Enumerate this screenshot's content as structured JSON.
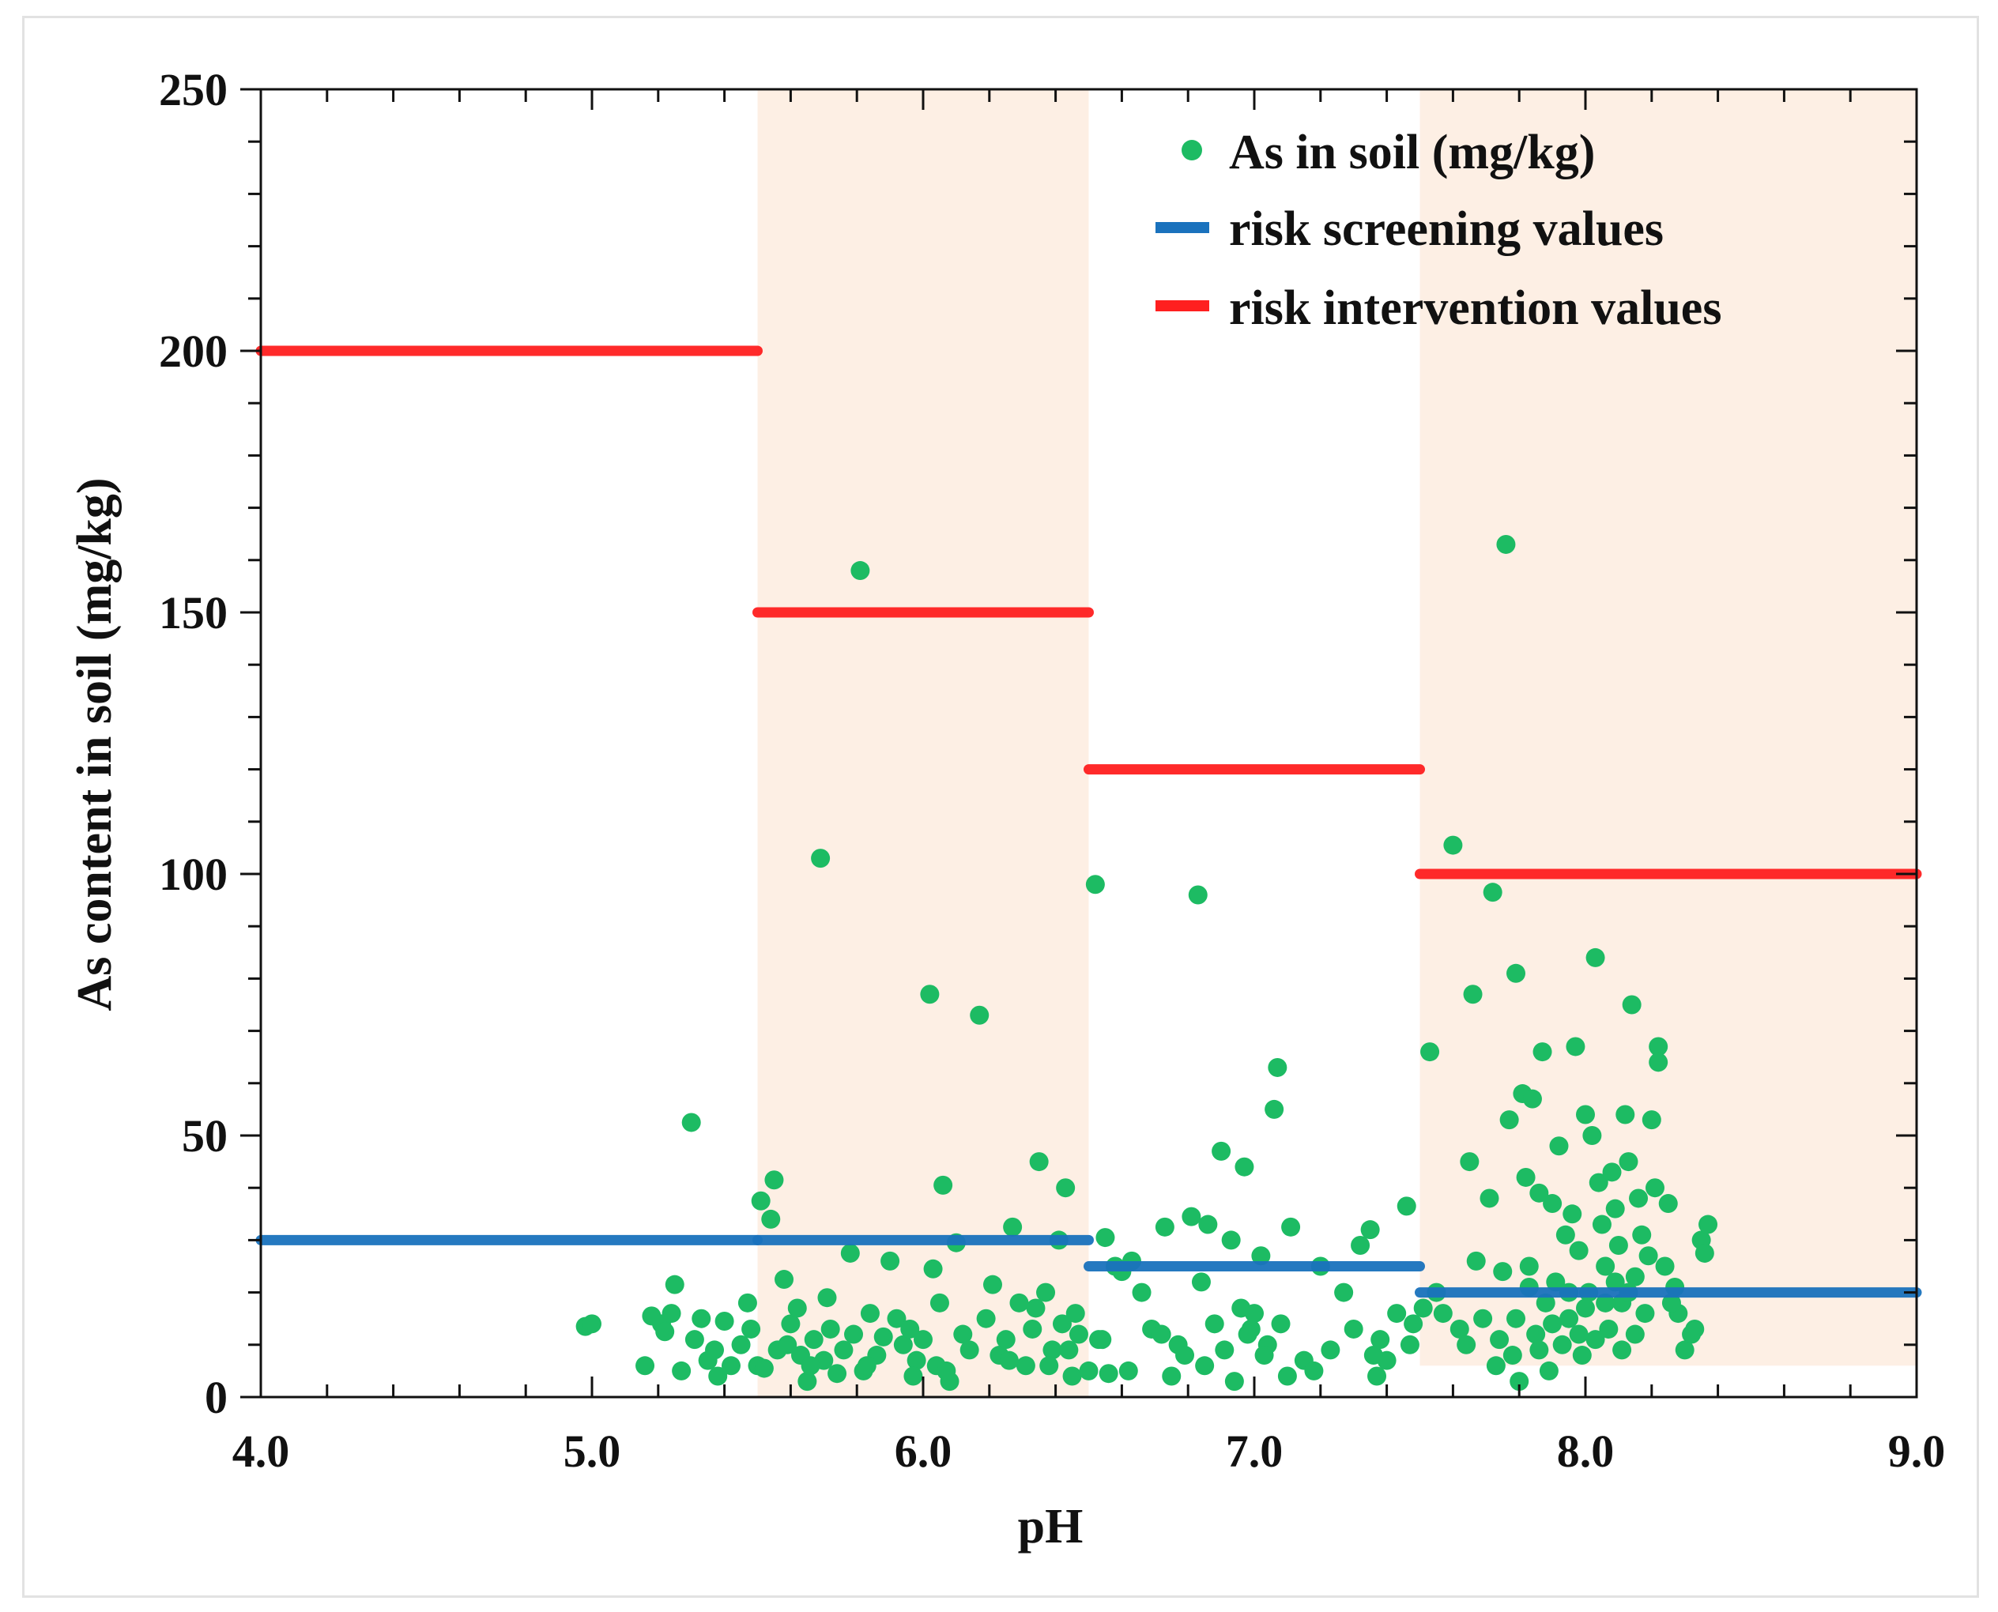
{
  "chart_data": {
    "type": "scatter",
    "title": "",
    "xlabel": "pH",
    "ylabel": "As content in soil (mg/kg)",
    "xlim": [
      4.0,
      9.0
    ],
    "ylim": [
      0,
      250
    ],
    "x_ticks": [
      "4.0",
      "5.0",
      "6.0",
      "7.0",
      "8.0",
      "9.0"
    ],
    "y_ticks": [
      "0",
      "50",
      "100",
      "150",
      "200",
      "250"
    ],
    "x_tick_values": [
      4.0,
      5.0,
      6.0,
      7.0,
      8.0,
      9.0
    ],
    "y_tick_values": [
      0,
      50,
      100,
      150,
      200,
      250
    ],
    "grid": false,
    "legend_position": "top-right",
    "legend": [
      {
        "key": "scatter",
        "label": "As in soil (mg/kg)"
      },
      {
        "key": "screening",
        "label": "risk screening values"
      },
      {
        "key": "intervention",
        "label": "risk intervention values"
      }
    ],
    "colors": {
      "scatter": "#1dbb63",
      "screening": "#1a72bd",
      "intervention": "#ff1f1f",
      "band": "#fdefe4",
      "axis": "#111111"
    },
    "shaded_bands": [
      {
        "x_range": [
          5.5,
          6.5
        ],
        "y_range": [
          0,
          250
        ]
      },
      {
        "x_range": [
          7.5,
          9.0
        ],
        "y_range": [
          6,
          250
        ]
      }
    ],
    "risk_screening_values": [
      {
        "x_range": [
          4.0,
          5.5
        ],
        "y": 30
      },
      {
        "x_range": [
          5.5,
          6.5
        ],
        "y": 30
      },
      {
        "x_range": [
          6.5,
          7.5
        ],
        "y": 25
      },
      {
        "x_range": [
          7.5,
          9.0
        ],
        "y": 20
      }
    ],
    "risk_intervention_values": [
      {
        "x_range": [
          4.0,
          5.5
        ],
        "y": 200
      },
      {
        "x_range": [
          5.5,
          6.5
        ],
        "y": 150
      },
      {
        "x_range": [
          6.5,
          7.5
        ],
        "y": 120
      },
      {
        "x_range": [
          7.5,
          9.0
        ],
        "y": 100
      }
    ],
    "scatter": {
      "name": "As in soil (mg/kg)",
      "points": [
        [
          4.98,
          13.5
        ],
        [
          5.0,
          14
        ],
        [
          5.16,
          6
        ],
        [
          5.18,
          15.5
        ],
        [
          5.21,
          14
        ],
        [
          5.22,
          12.5
        ],
        [
          5.24,
          16
        ],
        [
          5.25,
          21.5
        ],
        [
          5.27,
          5
        ],
        [
          5.3,
          52.5
        ],
        [
          5.31,
          11
        ],
        [
          5.33,
          15
        ],
        [
          5.35,
          7
        ],
        [
          5.37,
          9
        ],
        [
          5.38,
          4
        ],
        [
          5.4,
          14.5
        ],
        [
          5.42,
          6
        ],
        [
          5.45,
          10
        ],
        [
          5.47,
          18
        ],
        [
          5.48,
          13
        ],
        [
          5.5,
          6
        ],
        [
          5.51,
          37.5
        ],
        [
          5.52,
          5.5
        ],
        [
          5.54,
          34
        ],
        [
          5.55,
          41.5
        ],
        [
          5.56,
          9
        ],
        [
          5.58,
          22.5
        ],
        [
          5.6,
          14
        ],
        [
          5.62,
          17
        ],
        [
          5.63,
          8
        ],
        [
          5.65,
          3
        ],
        [
          5.67,
          11
        ],
        [
          5.69,
          103
        ],
        [
          5.7,
          7
        ],
        [
          5.72,
          13
        ],
        [
          5.74,
          4.5
        ],
        [
          5.76,
          9
        ],
        [
          5.78,
          27.5
        ],
        [
          5.79,
          12
        ],
        [
          5.81,
          158
        ],
        [
          5.82,
          5
        ],
        [
          5.84,
          16
        ],
        [
          5.86,
          8
        ],
        [
          5.88,
          11.5
        ],
        [
          5.9,
          26
        ],
        [
          5.92,
          15
        ],
        [
          5.94,
          10
        ],
        [
          5.96,
          13
        ],
        [
          5.98,
          7
        ],
        [
          6.0,
          11
        ],
        [
          6.02,
          77
        ],
        [
          6.03,
          24.5
        ],
        [
          6.04,
          6
        ],
        [
          6.05,
          18
        ],
        [
          6.06,
          40.5
        ],
        [
          6.08,
          3
        ],
        [
          6.1,
          29.5
        ],
        [
          6.12,
          12
        ],
        [
          6.14,
          9
        ],
        [
          6.17,
          73
        ],
        [
          6.19,
          15
        ],
        [
          6.21,
          21.5
        ],
        [
          6.23,
          8
        ],
        [
          6.25,
          11
        ],
        [
          6.27,
          32.5
        ],
        [
          6.29,
          18
        ],
        [
          6.31,
          6
        ],
        [
          6.33,
          13
        ],
        [
          6.35,
          45
        ],
        [
          6.37,
          20
        ],
        [
          6.39,
          9
        ],
        [
          6.41,
          30
        ],
        [
          6.42,
          14
        ],
        [
          6.43,
          40
        ],
        [
          6.45,
          4
        ],
        [
          6.47,
          12
        ],
        [
          6.5,
          5
        ],
        [
          6.52,
          98
        ],
        [
          6.53,
          11
        ],
        [
          6.55,
          30.5
        ],
        [
          6.56,
          4.5
        ],
        [
          6.58,
          25
        ],
        [
          6.6,
          24
        ],
        [
          6.63,
          26
        ],
        [
          6.66,
          20
        ],
        [
          6.69,
          13
        ],
        [
          6.72,
          12
        ],
        [
          6.73,
          32.5
        ],
        [
          6.75,
          4
        ],
        [
          6.77,
          10
        ],
        [
          6.79,
          8
        ],
        [
          6.81,
          34.5
        ],
        [
          6.83,
          96
        ],
        [
          6.84,
          22
        ],
        [
          6.86,
          33
        ],
        [
          6.88,
          14
        ],
        [
          6.9,
          47
        ],
        [
          6.91,
          9
        ],
        [
          6.93,
          30
        ],
        [
          6.94,
          3
        ],
        [
          6.96,
          17
        ],
        [
          6.97,
          44
        ],
        [
          6.99,
          13
        ],
        [
          7.0,
          16
        ],
        [
          7.02,
          27
        ],
        [
          7.04,
          10
        ],
        [
          7.06,
          55
        ],
        [
          7.07,
          63
        ],
        [
          7.1,
          4
        ],
        [
          7.11,
          32.5
        ],
        [
          7.15,
          7
        ],
        [
          7.18,
          5
        ],
        [
          7.2,
          25
        ],
        [
          7.23,
          9
        ],
        [
          7.27,
          20
        ],
        [
          7.3,
          13
        ],
        [
          7.32,
          29
        ],
        [
          7.35,
          32
        ],
        [
          7.37,
          4
        ],
        [
          7.38,
          11
        ],
        [
          7.4,
          7
        ],
        [
          7.43,
          16
        ],
        [
          7.46,
          36.5
        ],
        [
          7.47,
          10
        ],
        [
          7.48,
          14
        ],
        [
          7.51,
          17
        ],
        [
          7.53,
          66
        ],
        [
          7.55,
          20
        ],
        [
          7.57,
          16
        ],
        [
          7.6,
          105.5
        ],
        [
          7.62,
          13
        ],
        [
          7.64,
          10
        ],
        [
          7.65,
          45
        ],
        [
          7.66,
          77
        ],
        [
          7.67,
          26
        ],
        [
          7.69,
          15
        ],
        [
          7.71,
          38
        ],
        [
          7.72,
          96.5
        ],
        [
          7.73,
          6
        ],
        [
          7.75,
          24
        ],
        [
          7.76,
          163
        ],
        [
          7.77,
          53
        ],
        [
          7.78,
          8
        ],
        [
          7.79,
          81
        ],
        [
          7.8,
          3
        ],
        [
          7.81,
          58
        ],
        [
          7.82,
          42
        ],
        [
          7.83,
          25
        ],
        [
          7.84,
          57
        ],
        [
          7.85,
          12
        ],
        [
          7.86,
          39
        ],
        [
          7.87,
          66
        ],
        [
          7.88,
          18
        ],
        [
          7.89,
          5
        ],
        [
          7.9,
          37
        ],
        [
          7.91,
          22
        ],
        [
          7.92,
          48
        ],
        [
          7.93,
          10
        ],
        [
          7.94,
          31
        ],
        [
          7.95,
          15
        ],
        [
          7.96,
          35
        ],
        [
          7.97,
          67
        ],
        [
          7.98,
          28
        ],
        [
          7.99,
          8
        ],
        [
          8.0,
          54
        ],
        [
          8.01,
          20
        ],
        [
          8.02,
          50
        ],
        [
          8.03,
          84
        ],
        [
          8.04,
          41
        ],
        [
          8.05,
          33
        ],
        [
          8.06,
          25
        ],
        [
          8.07,
          13
        ],
        [
          8.08,
          43
        ],
        [
          8.09,
          36
        ],
        [
          8.1,
          29
        ],
        [
          8.11,
          18
        ],
        [
          8.12,
          54
        ],
        [
          8.13,
          45
        ],
        [
          8.14,
          75
        ],
        [
          8.15,
          23
        ],
        [
          8.16,
          38
        ],
        [
          8.17,
          31
        ],
        [
          8.18,
          16
        ],
        [
          8.2,
          53
        ],
        [
          8.21,
          40
        ],
        [
          8.22,
          67
        ],
        [
          8.22,
          64
        ],
        [
          8.24,
          25
        ],
        [
          8.25,
          37
        ],
        [
          8.27,
          21
        ],
        [
          8.28,
          16
        ],
        [
          8.3,
          9
        ],
        [
          8.32,
          12
        ],
        [
          8.33,
          13
        ],
        [
          8.35,
          30
        ],
        [
          8.36,
          27.5
        ],
        [
          8.37,
          33
        ],
        [
          5.59,
          10
        ],
        [
          5.66,
          6
        ],
        [
          5.71,
          19
        ],
        [
          5.83,
          6
        ],
        [
          5.97,
          4
        ],
        [
          6.07,
          5
        ],
        [
          6.26,
          7
        ],
        [
          6.34,
          17
        ],
        [
          6.38,
          6
        ],
        [
          6.44,
          9
        ],
        [
          6.46,
          16
        ],
        [
          6.54,
          11
        ],
        [
          6.62,
          5
        ],
        [
          6.85,
          6
        ],
        [
          6.98,
          12
        ],
        [
          7.03,
          8
        ],
        [
          7.08,
          14
        ],
        [
          7.36,
          8
        ],
        [
          7.79,
          15
        ],
        [
          7.86,
          9
        ],
        [
          7.95,
          20
        ],
        [
          8.03,
          11
        ],
        [
          8.06,
          18
        ],
        [
          8.09,
          22
        ],
        [
          8.15,
          12
        ],
        [
          8.19,
          27
        ],
        [
          8.26,
          18
        ],
        [
          7.74,
          11
        ],
        [
          7.9,
          14
        ],
        [
          8.0,
          17
        ],
        [
          8.11,
          9
        ],
        [
          7.83,
          21
        ],
        [
          7.98,
          12
        ],
        [
          8.13,
          20
        ]
      ]
    }
  }
}
